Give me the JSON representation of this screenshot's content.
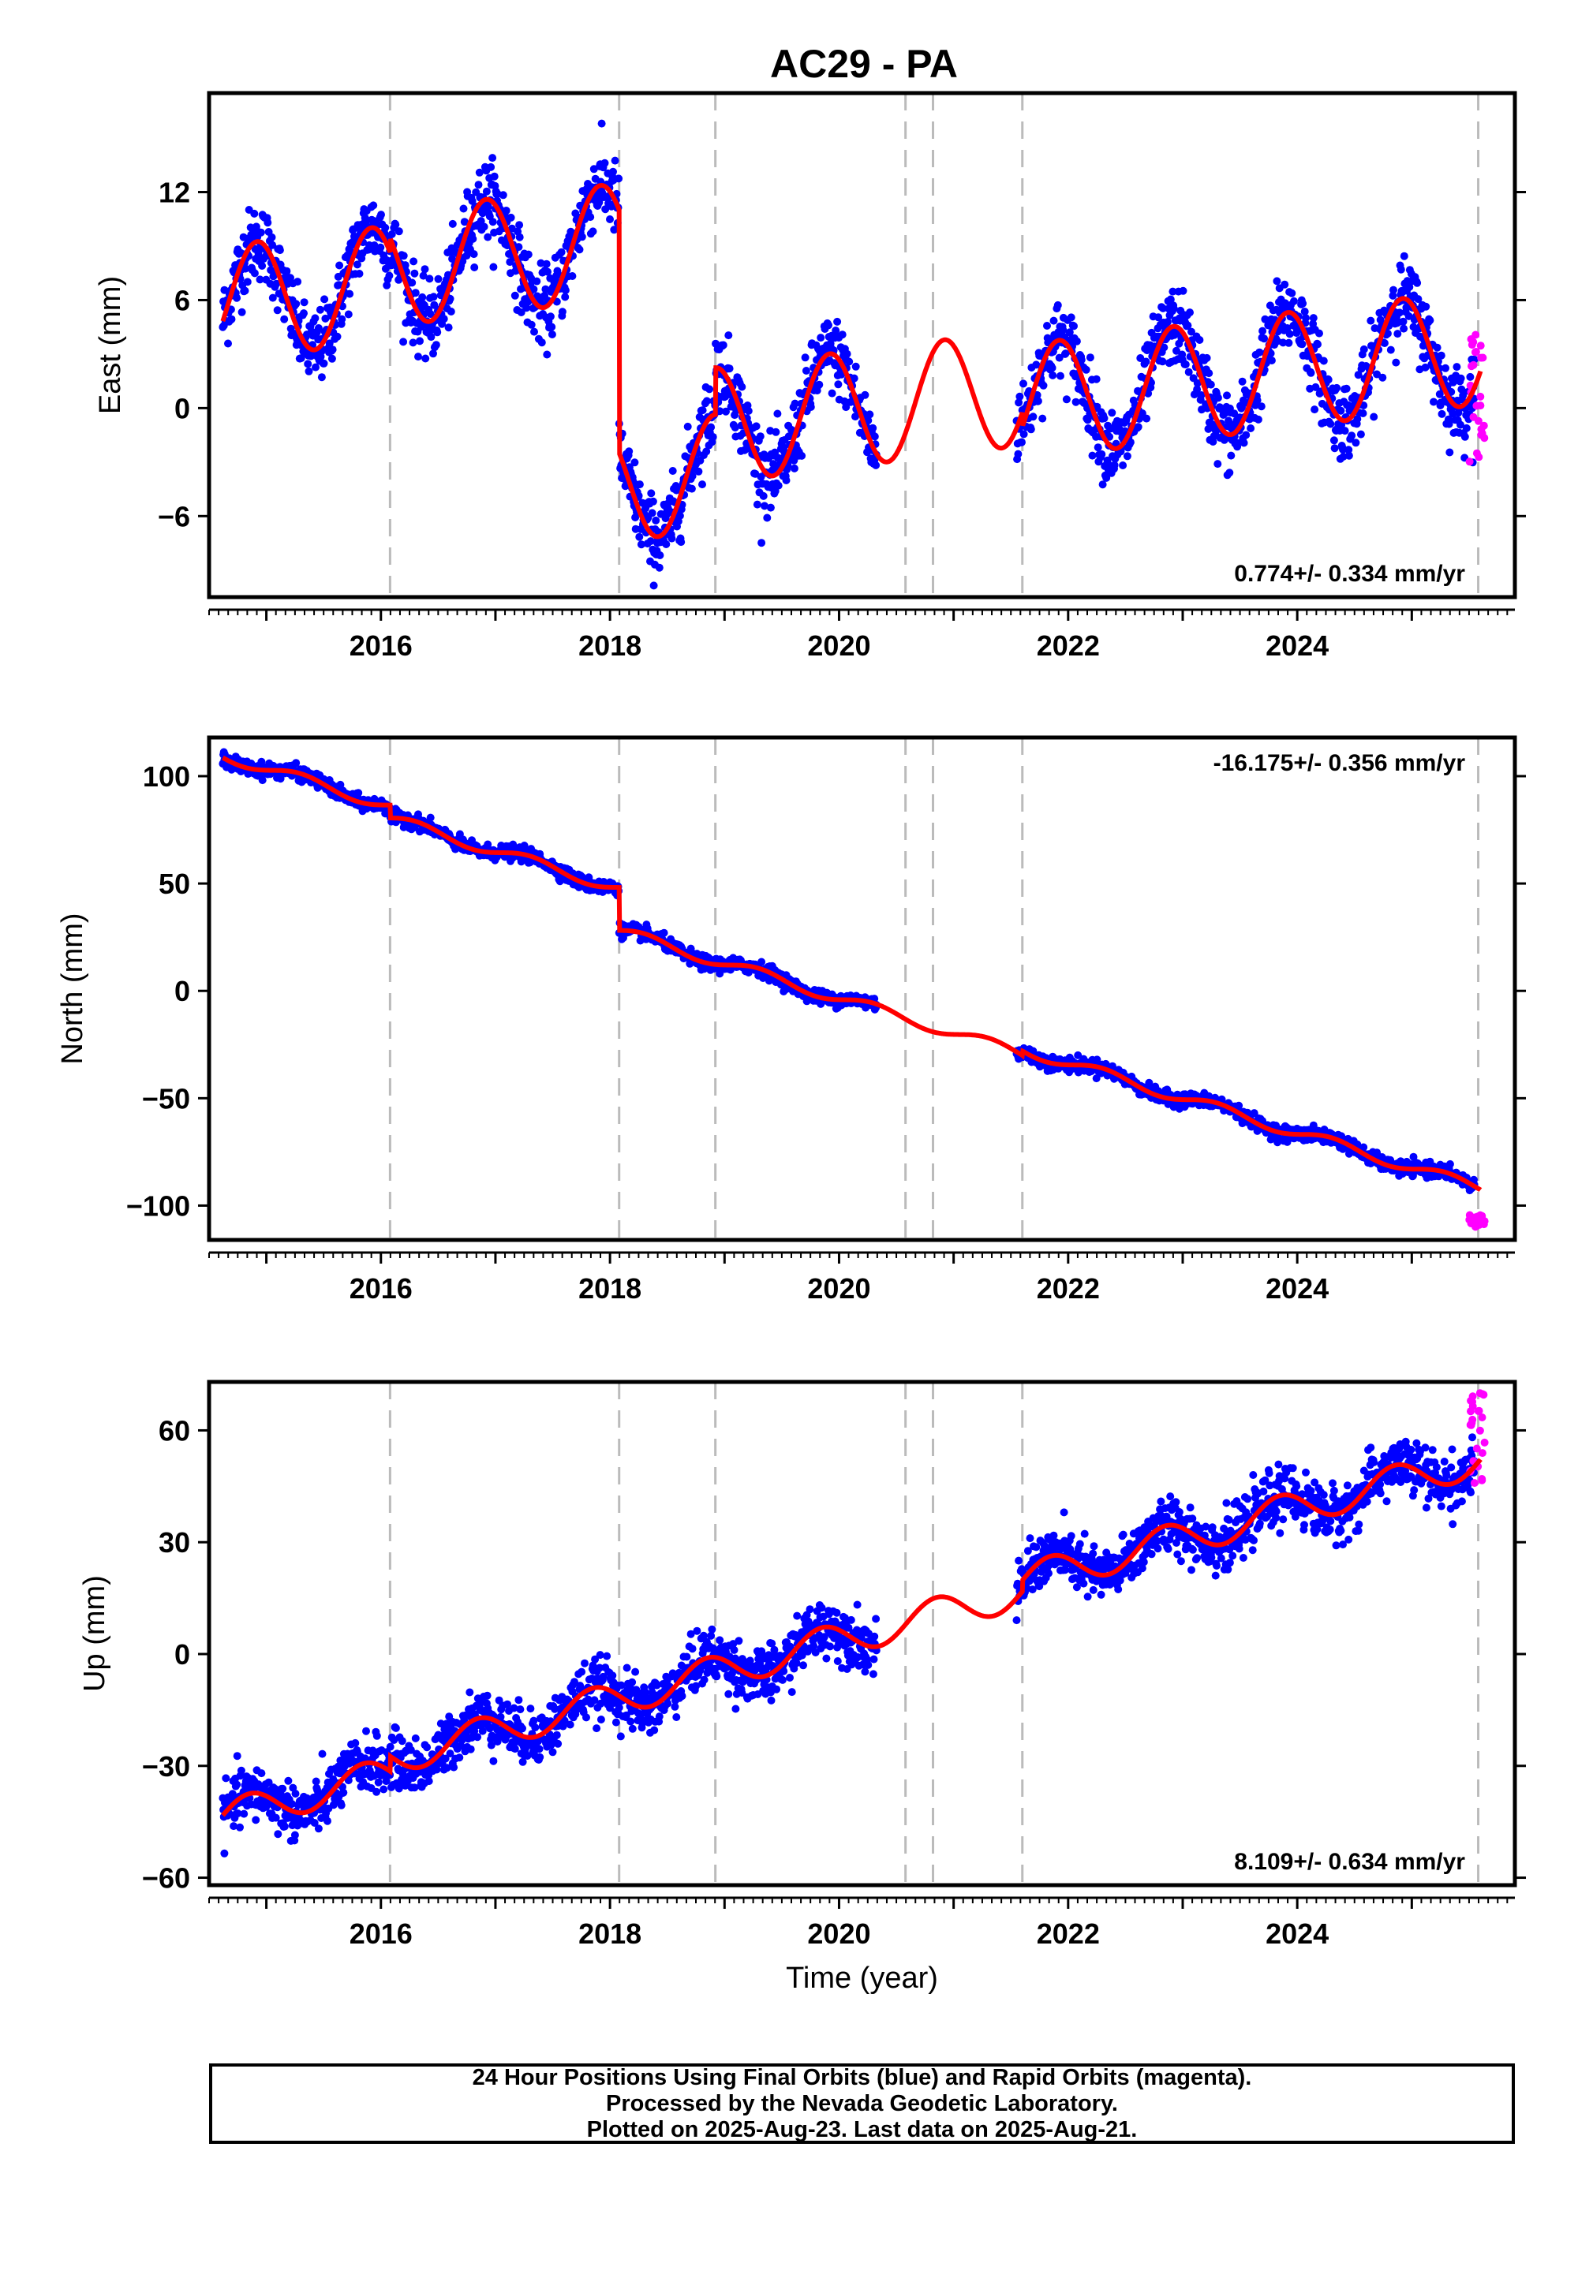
{
  "title": "AC29 - PA",
  "footer": {
    "line1": "24 Hour Positions Using Final Orbits (blue) and Rapid Orbits (magenta).",
    "line2": "Processed by the Nevada Geodetic Laboratory.",
    "line3": "Plotted on 2025-Aug-23. Last data on 2025-Aug-21."
  },
  "colors": {
    "final_orbits": "#0000ff",
    "rapid_orbits": "#ff00ff",
    "model_fit": "#ff0000",
    "event_lines": "#bbbbbb"
  },
  "chart_data": [
    {
      "type": "scatter",
      "panel": "east",
      "ylabel": "East (mm)",
      "xlabel": "",
      "xlim": [
        2014.5,
        2025.9
      ],
      "ylim": [
        -10.5,
        17.5
      ],
      "x_ticks": [
        2016,
        2018,
        2020,
        2022,
        2024
      ],
      "y_ticks": [
        -6,
        0,
        6,
        12
      ],
      "y_tick_labels": [
        "−6",
        "0",
        "6",
        "12"
      ],
      "rate": "0.774+/- 0.334 mm/yr",
      "rate_position": "bottom-right",
      "event_lines": [
        2016.08,
        2018.08,
        2018.92,
        2020.58,
        2020.82,
        2021.6,
        2025.58
      ],
      "gaps": [
        [
          2020.33,
          2021.55
        ]
      ],
      "fit": {
        "offset": 5.8,
        "rate": 0.774,
        "annual_amp": 3.2,
        "annual_peak": 2014.92,
        "steps": [
          [
            2016.08,
            0.8
          ],
          [
            2018.08,
            -13.5
          ],
          [
            2018.92,
            2.6
          ],
          [
            2021.6,
            -0.8
          ]
        ]
      },
      "scatter_sigma": 1.05,
      "rapid": {
        "x_range": [
          2025.5,
          2025.64
        ],
        "y_range": [
          -3,
          4.5
        ]
      },
      "series": [
        {
          "name": "Final Orbits (blue)",
          "color": "#0000ff"
        },
        {
          "name": "Rapid Orbits (magenta)",
          "color": "#ff00ff"
        },
        {
          "name": "",
          "color": "#ff0000"
        }
      ]
    },
    {
      "type": "scatter",
      "panel": "north",
      "ylabel": "North (mm)",
      "xlabel": "",
      "xlim": [
        2014.5,
        2025.9
      ],
      "ylim": [
        -116,
        118
      ],
      "x_ticks": [
        2016,
        2018,
        2020,
        2022,
        2024
      ],
      "y_ticks": [
        -100,
        -50,
        0,
        50,
        100
      ],
      "y_tick_labels": [
        "−100",
        "−50",
        "0",
        "50",
        "100"
      ],
      "rate": "-16.175+/- 0.356 mm/yr",
      "rate_position": "top-right",
      "event_lines": [
        2016.08,
        2018.08,
        2018.92,
        2020.58,
        2020.82,
        2021.6,
        2025.58
      ],
      "gaps": [
        [
          2020.33,
          2021.55
        ]
      ],
      "fit": {
        "offset": 110,
        "rate": -16.175,
        "annual_amp": 2.5,
        "annual_peak": 2015.3,
        "steps": [
          [
            2016.08,
            -6
          ],
          [
            2018.08,
            -20
          ],
          [
            2021.6,
            2
          ]
        ]
      },
      "scatter_sigma": 1.6,
      "rapid": {
        "x_range": [
          2025.5,
          2025.64
        ],
        "y_range": [
          -110,
          -104
        ]
      },
      "series": [
        {
          "name": "Final Orbits (blue)",
          "color": "#0000ff"
        },
        {
          "name": "Rapid Orbits (magenta)",
          "color": "#ff00ff"
        },
        {
          "name": "",
          "color": "#ff0000"
        }
      ]
    },
    {
      "type": "scatter",
      "panel": "up",
      "ylabel": "Up (mm)",
      "xlabel": "Time (year)",
      "xlim": [
        2014.5,
        2025.9
      ],
      "ylim": [
        -62,
        73
      ],
      "x_ticks": [
        2016,
        2018,
        2020,
        2022,
        2024
      ],
      "y_ticks": [
        -60,
        -30,
        0,
        30,
        60
      ],
      "y_tick_labels": [
        "−60",
        "−30",
        "0",
        "30",
        "60"
      ],
      "rate": "8.109+/- 0.634 mm/yr",
      "rate_position": "bottom-right",
      "event_lines": [
        2016.08,
        2018.08,
        2018.92,
        2020.58,
        2020.82,
        2021.6,
        2025.58
      ],
      "gaps": [
        [
          2020.33,
          2021.55
        ]
      ],
      "fit": {
        "offset": -44,
        "rate": 8.109,
        "annual_amp": 4.5,
        "annual_peak": 2014.85,
        "steps": [
          [
            2016.08,
            4
          ],
          [
            2021.6,
            3
          ]
        ]
      },
      "scatter_sigma": 3.6,
      "rapid": {
        "x_range": [
          2025.5,
          2025.64
        ],
        "y_range": [
          45,
          70
        ]
      },
      "series": [
        {
          "name": "Final Orbits (blue)",
          "color": "#0000ff"
        },
        {
          "name": "Rapid Orbits (magenta)",
          "color": "#ff00ff"
        },
        {
          "name": "",
          "color": "#ff0000"
        }
      ]
    }
  ]
}
